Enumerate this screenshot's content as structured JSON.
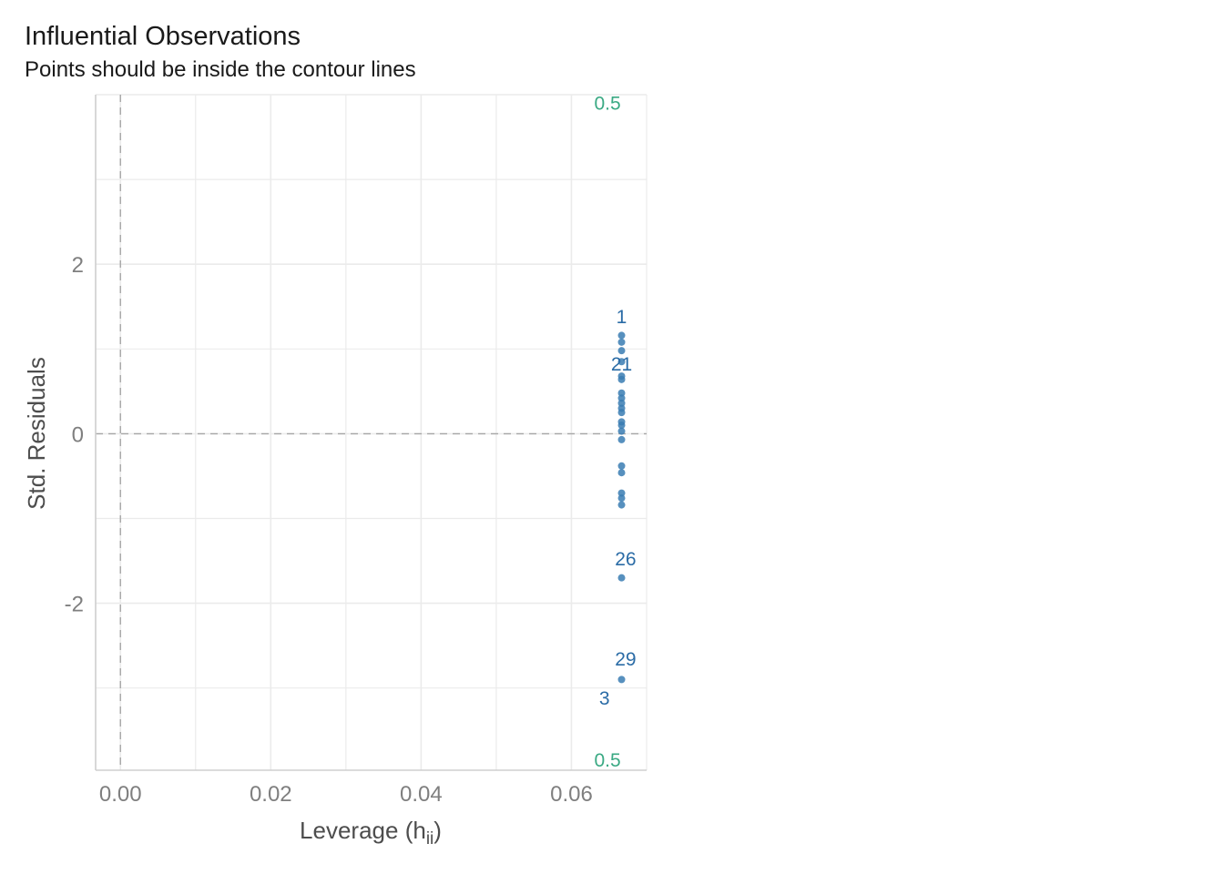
{
  "chart_data": {
    "type": "scatter",
    "title": "Influential Observations",
    "subtitle": "Points should be inside the contour lines",
    "xlabel": "Leverage (h",
    "xlabel_sub": "ii",
    "xlabel_close": ")",
    "ylabel": "Std. Residuals",
    "xlim": [
      -0.0033,
      0.07
    ],
    "ylim": [
      -3.97,
      4.0
    ],
    "x_ticks": [
      0.0,
      0.02,
      0.04,
      0.06
    ],
    "x_tick_labels": [
      "0.00",
      "0.02",
      "0.04",
      "0.06"
    ],
    "y_ticks": [
      -2,
      0,
      2
    ],
    "y_tick_labels": [
      "-2",
      "0",
      "2"
    ],
    "grid": true,
    "reference_lines": {
      "x": 0,
      "y": 0
    },
    "contour_labels": [
      {
        "text": "0.5",
        "x": 0.0648,
        "y": 3.9
      },
      {
        "text": "0.5",
        "x": 0.0648,
        "y": -3.85
      }
    ],
    "point_x": 0.06667,
    "points_y": [
      1.16,
      1.08,
      0.98,
      0.85,
      0.68,
      0.64,
      0.48,
      0.42,
      0.36,
      0.3,
      0.25,
      0.14,
      0.1,
      0.03,
      -0.07,
      -0.38,
      -0.46,
      -0.7,
      -0.76,
      -0.84,
      -1.7,
      -2.9
    ],
    "point_labels": [
      {
        "text": "1",
        "x": 0.06667,
        "y": 1.38
      },
      {
        "text": "21",
        "x": 0.06667,
        "y": 0.82
      },
      {
        "text": "26",
        "x": 0.0672,
        "y": -1.48
      },
      {
        "text": "29",
        "x": 0.0672,
        "y": -2.66
      },
      {
        "text": "3",
        "x": 0.0644,
        "y": -3.12
      }
    ],
    "colors": {
      "points": "#3a7cb3",
      "point_labels": "#2b6ca6",
      "contour": "#3aa983",
      "grid": "#ebebeb",
      "refline": "#a6a6a6"
    }
  }
}
